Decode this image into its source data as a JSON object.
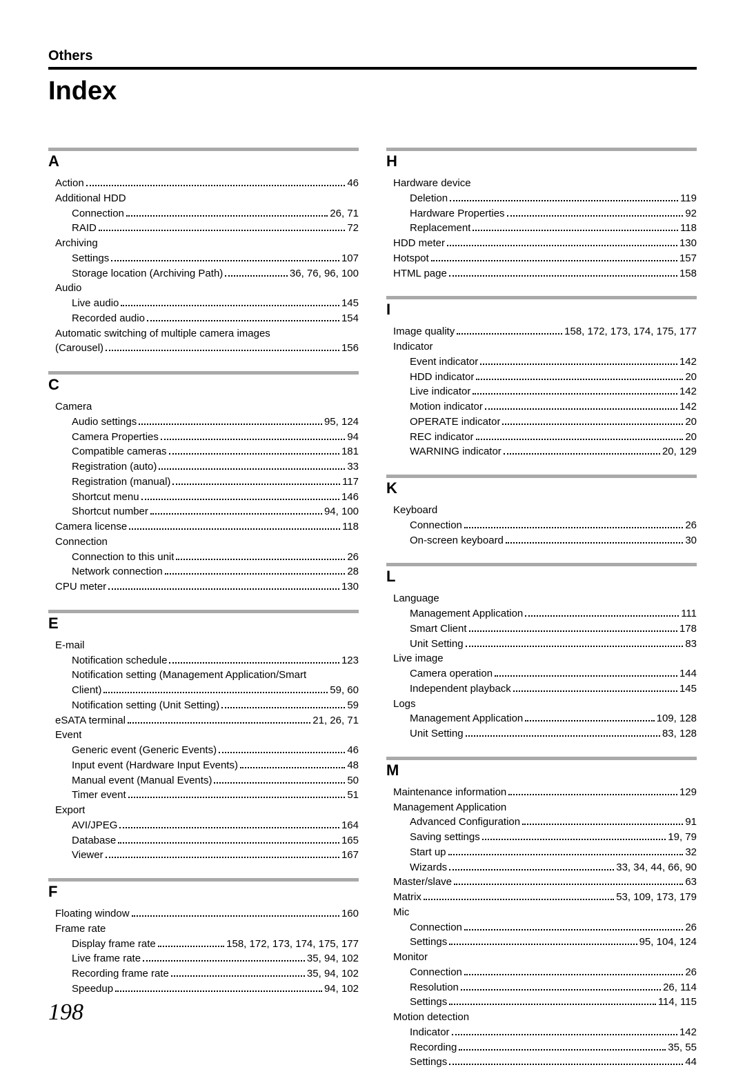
{
  "section_label": "Others",
  "title": "Index",
  "page_number": "198",
  "left": [
    {
      "letter": "A",
      "rows": [
        {
          "lvl": 0,
          "label": "Action",
          "page": "46"
        },
        {
          "lvl": 0,
          "label": "Additional HDD",
          "page": ""
        },
        {
          "lvl": 1,
          "label": "Connection",
          "page": "26, 71"
        },
        {
          "lvl": 1,
          "label": "RAID",
          "page": "72"
        },
        {
          "lvl": 0,
          "label": "Archiving",
          "page": ""
        },
        {
          "lvl": 1,
          "label": "Settings",
          "page": "107"
        },
        {
          "lvl": 1,
          "label": "Storage location (Archiving Path)",
          "page": "36, 76, 96, 100"
        },
        {
          "lvl": 0,
          "label": "Audio",
          "page": ""
        },
        {
          "lvl": 1,
          "label": "Live audio",
          "page": "145"
        },
        {
          "lvl": 1,
          "label": "Recorded audio",
          "page": "154"
        },
        {
          "lvl": 0,
          "label": "Automatic switching of multiple camera images",
          "page": "",
          "nolead": true
        },
        {
          "lvl": 0,
          "label": "(Carousel)",
          "page": "156"
        }
      ]
    },
    {
      "letter": "C",
      "rows": [
        {
          "lvl": 0,
          "label": "Camera",
          "page": ""
        },
        {
          "lvl": 1,
          "label": "Audio settings",
          "page": "95, 124"
        },
        {
          "lvl": 1,
          "label": "Camera Properties",
          "page": "94"
        },
        {
          "lvl": 1,
          "label": "Compatible cameras",
          "page": "181"
        },
        {
          "lvl": 1,
          "label": "Registration (auto)",
          "page": "33"
        },
        {
          "lvl": 1,
          "label": "Registration (manual)",
          "page": "117"
        },
        {
          "lvl": 1,
          "label": "Shortcut menu",
          "page": "146"
        },
        {
          "lvl": 1,
          "label": "Shortcut number",
          "page": "94, 100"
        },
        {
          "lvl": 0,
          "label": "Camera license",
          "page": "118"
        },
        {
          "lvl": 0,
          "label": "Connection",
          "page": ""
        },
        {
          "lvl": 1,
          "label": "Connection to this unit",
          "page": "26"
        },
        {
          "lvl": 1,
          "label": "Network connection",
          "page": "28"
        },
        {
          "lvl": 0,
          "label": "CPU meter",
          "page": "130"
        }
      ]
    },
    {
      "letter": "E",
      "rows": [
        {
          "lvl": 0,
          "label": "E-mail",
          "page": ""
        },
        {
          "lvl": 1,
          "label": "Notification schedule",
          "page": "123"
        },
        {
          "lvl": 1,
          "label": "Notification setting (Management Application/Smart",
          "page": "",
          "nolead": true
        },
        {
          "lvl": 1,
          "label": "Client)",
          "page": "59, 60"
        },
        {
          "lvl": 1,
          "label": "Notification setting (Unit Setting)",
          "page": "59"
        },
        {
          "lvl": 0,
          "label": "eSATA terminal",
          "page": "21, 26, 71"
        },
        {
          "lvl": 0,
          "label": "Event",
          "page": ""
        },
        {
          "lvl": 1,
          "label": "Generic event (Generic Events)",
          "page": "46"
        },
        {
          "lvl": 1,
          "label": "Input event (Hardware Input Events)",
          "page": "48"
        },
        {
          "lvl": 1,
          "label": "Manual event (Manual Events)",
          "page": "50"
        },
        {
          "lvl": 1,
          "label": "Timer event",
          "page": "51"
        },
        {
          "lvl": 0,
          "label": "Export",
          "page": ""
        },
        {
          "lvl": 1,
          "label": "AVI/JPEG",
          "page": "164"
        },
        {
          "lvl": 1,
          "label": "Database",
          "page": "165"
        },
        {
          "lvl": 1,
          "label": "Viewer",
          "page": "167"
        }
      ]
    },
    {
      "letter": "F",
      "rows": [
        {
          "lvl": 0,
          "label": "Floating window",
          "page": "160"
        },
        {
          "lvl": 0,
          "label": "Frame rate",
          "page": ""
        },
        {
          "lvl": 1,
          "label": "Display frame rate",
          "page": "158, 172, 173, 174, 175, 177"
        },
        {
          "lvl": 1,
          "label": "Live frame rate",
          "page": "35, 94, 102"
        },
        {
          "lvl": 1,
          "label": "Recording frame rate",
          "page": "35, 94, 102"
        },
        {
          "lvl": 1,
          "label": "Speedup",
          "page": "94, 102"
        }
      ]
    }
  ],
  "right": [
    {
      "letter": "H",
      "rows": [
        {
          "lvl": 0,
          "label": "Hardware device",
          "page": ""
        },
        {
          "lvl": 1,
          "label": "Deletion",
          "page": "119"
        },
        {
          "lvl": 1,
          "label": "Hardware Properties",
          "page": "92"
        },
        {
          "lvl": 1,
          "label": "Replacement",
          "page": "118"
        },
        {
          "lvl": 0,
          "label": "HDD meter",
          "page": "130"
        },
        {
          "lvl": 0,
          "label": "Hotspot",
          "page": "157"
        },
        {
          "lvl": 0,
          "label": "HTML page",
          "page": "158"
        }
      ]
    },
    {
      "letter": "I",
      "rows": [
        {
          "lvl": 0,
          "label": "Image quality",
          "page": "158, 172, 173, 174, 175, 177"
        },
        {
          "lvl": 0,
          "label": "Indicator",
          "page": ""
        },
        {
          "lvl": 1,
          "label": "Event indicator",
          "page": "142"
        },
        {
          "lvl": 1,
          "label": "HDD indicator",
          "page": "20"
        },
        {
          "lvl": 1,
          "label": "Live indicator",
          "page": "142"
        },
        {
          "lvl": 1,
          "label": "Motion indicator",
          "page": "142"
        },
        {
          "lvl": 1,
          "label": "OPERATE indicator",
          "page": "20"
        },
        {
          "lvl": 1,
          "label": "REC indicator",
          "page": "20"
        },
        {
          "lvl": 1,
          "label": "WARNING indicator",
          "page": "20, 129"
        }
      ]
    },
    {
      "letter": "K",
      "rows": [
        {
          "lvl": 0,
          "label": "Keyboard",
          "page": ""
        },
        {
          "lvl": 1,
          "label": "Connection",
          "page": "26"
        },
        {
          "lvl": 1,
          "label": "On-screen keyboard",
          "page": "30"
        }
      ]
    },
    {
      "letter": "L",
      "rows": [
        {
          "lvl": 0,
          "label": "Language",
          "page": ""
        },
        {
          "lvl": 1,
          "label": "Management Application",
          "page": "111"
        },
        {
          "lvl": 1,
          "label": "Smart Client",
          "page": "178"
        },
        {
          "lvl": 1,
          "label": "Unit Setting",
          "page": "83"
        },
        {
          "lvl": 0,
          "label": "Live image",
          "page": ""
        },
        {
          "lvl": 1,
          "label": "Camera operation",
          "page": "144"
        },
        {
          "lvl": 1,
          "label": "Independent playback",
          "page": "145"
        },
        {
          "lvl": 0,
          "label": "Logs",
          "page": ""
        },
        {
          "lvl": 1,
          "label": "Management Application",
          "page": "109, 128"
        },
        {
          "lvl": 1,
          "label": "Unit Setting",
          "page": "83, 128"
        }
      ]
    },
    {
      "letter": "M",
      "rows": [
        {
          "lvl": 0,
          "label": "Maintenance information",
          "page": "129"
        },
        {
          "lvl": 0,
          "label": "Management Application",
          "page": ""
        },
        {
          "lvl": 1,
          "label": "Advanced Configuration",
          "page": "91"
        },
        {
          "lvl": 1,
          "label": "Saving settings",
          "page": "19, 79"
        },
        {
          "lvl": 1,
          "label": "Start up",
          "page": "32"
        },
        {
          "lvl": 1,
          "label": "Wizards",
          "page": "33, 34, 44, 66, 90"
        },
        {
          "lvl": 0,
          "label": "Master/slave",
          "page": "63"
        },
        {
          "lvl": 0,
          "label": "Matrix",
          "page": "53, 109, 173, 179"
        },
        {
          "lvl": 0,
          "label": "Mic",
          "page": ""
        },
        {
          "lvl": 1,
          "label": "Connection",
          "page": "26"
        },
        {
          "lvl": 1,
          "label": "Settings",
          "page": "95, 104, 124"
        },
        {
          "lvl": 0,
          "label": "Monitor",
          "page": ""
        },
        {
          "lvl": 1,
          "label": "Connection",
          "page": "26"
        },
        {
          "lvl": 1,
          "label": "Resolution",
          "page": "26, 114"
        },
        {
          "lvl": 1,
          "label": "Settings",
          "page": "114, 115"
        },
        {
          "lvl": 0,
          "label": "Motion detection",
          "page": ""
        },
        {
          "lvl": 1,
          "label": "Indicator",
          "page": "142"
        },
        {
          "lvl": 1,
          "label": "Recording",
          "page": "35, 55"
        },
        {
          "lvl": 1,
          "label": "Settings",
          "page": "44"
        }
      ]
    }
  ]
}
